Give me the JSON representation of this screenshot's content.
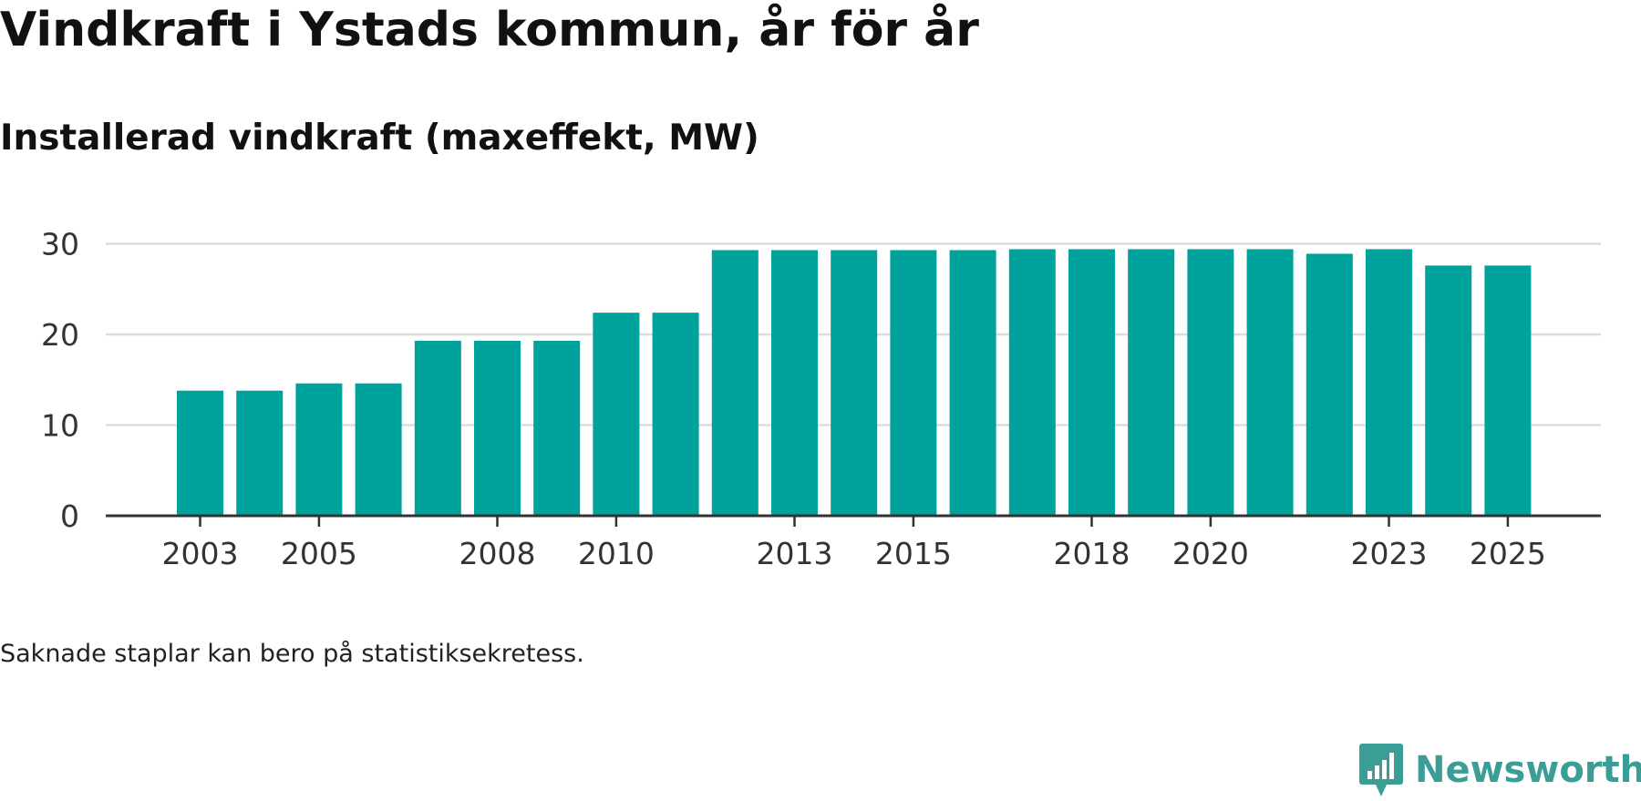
{
  "title": "Vindkraft i Ystads kommun, år för år",
  "subtitle": "Installerad vindkraft (maxeffekt, MW)",
  "note": "Saknade staplar kan bero på statistiksekretess.",
  "brand": {
    "name": "Newsworthy",
    "logo_icon": "bar-chart-speech-bubble-icon",
    "color": "#3b9e96"
  },
  "colors": {
    "bar": "#00a39b",
    "grid": "#dddddd",
    "axis": "#333333"
  },
  "chart_data": {
    "type": "bar",
    "title": "Vindkraft i Ystads kommun, år för år",
    "subtitle": "Installerad vindkraft (maxeffekt, MW)",
    "xlabel": "",
    "ylabel": "",
    "categories": [
      "2003",
      "2004",
      "2005",
      "2006",
      "2007",
      "2008",
      "2009",
      "2010",
      "2011",
      "2012",
      "2013",
      "2014",
      "2015",
      "2016",
      "2017",
      "2018",
      "2019",
      "2020",
      "2021",
      "2022",
      "2023",
      "2024",
      "2025"
    ],
    "values": [
      13.8,
      13.8,
      14.6,
      14.6,
      19.3,
      19.3,
      19.3,
      22.4,
      22.4,
      29.3,
      29.3,
      29.3,
      29.3,
      29.3,
      29.4,
      29.4,
      29.4,
      29.4,
      29.4,
      28.9,
      29.4,
      27.6,
      27.6
    ],
    "x_tick_labels": [
      "2003",
      "2005",
      "2008",
      "2010",
      "2013",
      "2015",
      "2018",
      "2020",
      "2023",
      "2025"
    ],
    "y_ticks": [
      0,
      10,
      20,
      30
    ],
    "ylim": [
      0,
      30
    ],
    "grid": true,
    "legend": "none"
  }
}
